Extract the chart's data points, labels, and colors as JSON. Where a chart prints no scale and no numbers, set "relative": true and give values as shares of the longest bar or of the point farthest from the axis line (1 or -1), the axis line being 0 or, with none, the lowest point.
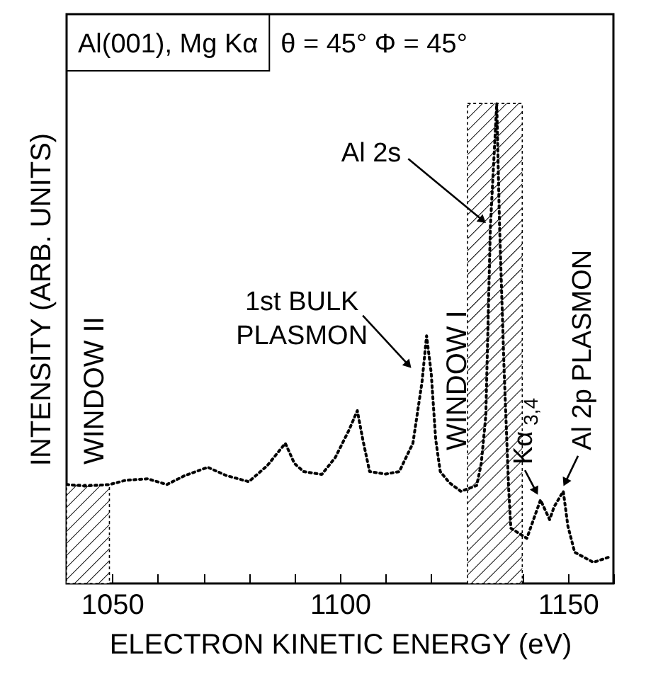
{
  "chart_data": {
    "type": "line",
    "title": "Al(001), Mg Kα",
    "subtitle": "θ = 45°   Φ = 45°",
    "xlabel": "ELECTRON KINETIC ENERGY (eV)",
    "ylabel": "INTENSITY (ARB. UNITS)",
    "relative": true,
    "line_style": "dotted",
    "color": "#000000",
    "x": [
      1040,
      1044,
      1049.4,
      1053,
      1057.8,
      1062,
      1066,
      1071,
      1075,
      1080,
      1084,
      1088,
      1090,
      1092,
      1096,
      1099,
      1102,
      1103.8,
      1105,
      1106.5,
      1110,
      1113,
      1116,
      1118,
      1119,
      1120,
      1121,
      1122,
      1124,
      1126.5,
      1130,
      1131,
      1132,
      1133,
      1134.4,
      1135,
      1136,
      1137,
      1137.5,
      1141,
      1144,
      1146,
      1147,
      1149,
      1150,
      1151.5,
      1155.6,
      1159.4
    ],
    "values": [
      0.206,
      0.203,
      0.206,
      0.215,
      0.218,
      0.206,
      0.225,
      0.242,
      0.225,
      0.212,
      0.245,
      0.292,
      0.25,
      0.233,
      0.227,
      0.263,
      0.32,
      0.36,
      0.3,
      0.233,
      0.228,
      0.233,
      0.292,
      0.42,
      0.516,
      0.44,
      0.3,
      0.233,
      0.21,
      0.192,
      0.204,
      0.25,
      0.35,
      0.743,
      1.0,
      0.75,
      0.448,
      0.2,
      0.115,
      0.094,
      0.174,
      0.133,
      0.16,
      0.192,
      0.12,
      0.065,
      0.044,
      0.056
    ],
    "xlim": [
      1040,
      1160
    ],
    "xticks": [
      {
        "value": 1040,
        "label": null
      },
      1050,
      {
        "value": 1060,
        "label": null
      },
      {
        "value": 1070,
        "label": null
      },
      {
        "value": 1080,
        "label": null
      },
      {
        "value": 1090,
        "label": null
      },
      1100,
      {
        "value": 1110,
        "label": null
      },
      {
        "value": 1120,
        "label": null
      },
      {
        "value": 1130,
        "label": null
      },
      {
        "value": 1140,
        "label": null
      },
      1150,
      {
        "value": 1160,
        "label": null
      }
    ],
    "bands": [
      {
        "axis": "x",
        "from": 1040,
        "to": 1049.4,
        "label": "WINDOW II"
      },
      {
        "axis": "x",
        "from": 1128,
        "to": 1140,
        "label": "WINDOW I"
      }
    ],
    "annotations": [
      {
        "text": "Al 2s",
        "x": 1133,
        "y": 0.743
      },
      {
        "text": "1st BULK\nPLASMON",
        "x": 1116.5,
        "y": 0.44
      },
      {
        "text": "Kα$_{3,4}$",
        "x": 1144,
        "y": 0.174
      },
      {
        "text": "Al 2p PLASMON",
        "x": 1148.5,
        "y": 0.192
      }
    ],
    "marker": "none"
  }
}
